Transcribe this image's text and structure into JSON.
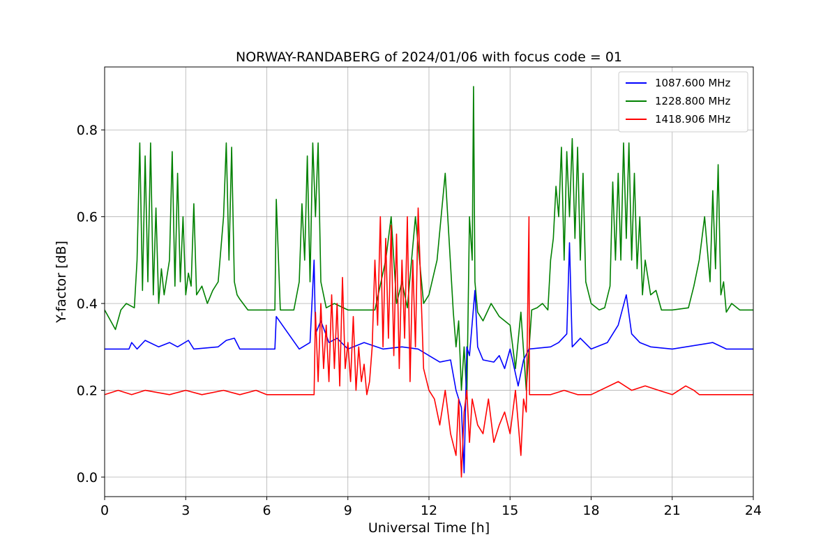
{
  "chart_data": {
    "type": "line",
    "title": "NORWAY-RANDABERG of 2024/01/06 with focus code = 01",
    "xlabel": "Universal Time [h]",
    "ylabel": "Y-factor [dB]",
    "xlim": [
      0,
      24
    ],
    "ylim": [
      -0.045,
      0.945
    ],
    "xticks": [
      0,
      3,
      6,
      9,
      12,
      15,
      18,
      21,
      24
    ],
    "yticks": [
      0.0,
      0.2,
      0.4,
      0.6,
      0.8
    ],
    "ytick_labels": [
      "0.0",
      "0.2",
      "0.4",
      "0.6",
      "0.8"
    ],
    "grid": true,
    "legend_position": "top-right",
    "series": [
      {
        "name": "1087.600 MHz",
        "color": "#0000ff",
        "baseline": 0.295,
        "x": [
          0,
          0.9,
          1.0,
          1.2,
          1.5,
          2.0,
          2.4,
          2.7,
          3.1,
          3.3,
          4.2,
          4.5,
          4.8,
          5.0,
          6.3,
          6.35,
          7.2,
          7.6,
          7.75,
          7.8,
          8.0,
          8.3,
          8.6,
          9.0,
          9.6,
          10.3,
          11.0,
          11.6,
          12.0,
          12.4,
          12.8,
          13.0,
          13.2,
          13.3,
          13.4,
          13.5,
          13.7,
          13.8,
          14.0,
          14.4,
          14.6,
          14.8,
          15.0,
          15.3,
          15.5,
          15.7,
          16.5,
          16.8,
          17.1,
          17.2,
          17.3,
          17.6,
          18.0,
          18.6,
          19.0,
          19.3,
          19.5,
          19.8,
          20.2,
          21.0,
          22.5,
          23.0,
          24.0
        ],
        "y": [
          0.295,
          0.295,
          0.31,
          0.295,
          0.315,
          0.3,
          0.31,
          0.3,
          0.315,
          0.295,
          0.3,
          0.315,
          0.32,
          0.295,
          0.295,
          0.37,
          0.295,
          0.31,
          0.5,
          0.33,
          0.36,
          0.31,
          0.32,
          0.295,
          0.31,
          0.295,
          0.3,
          0.295,
          0.28,
          0.265,
          0.27,
          0.2,
          0.16,
          0.01,
          0.3,
          0.28,
          0.43,
          0.3,
          0.27,
          0.265,
          0.28,
          0.25,
          0.295,
          0.21,
          0.27,
          0.295,
          0.3,
          0.31,
          0.33,
          0.54,
          0.3,
          0.32,
          0.295,
          0.31,
          0.35,
          0.42,
          0.33,
          0.31,
          0.3,
          0.295,
          0.31,
          0.295,
          0.295
        ]
      },
      {
        "name": "1228.800 MHz",
        "color": "#008000",
        "baseline": 0.385,
        "x": [
          0,
          0.4,
          0.6,
          0.8,
          1.1,
          1.2,
          1.3,
          1.4,
          1.5,
          1.6,
          1.7,
          1.8,
          1.9,
          2.0,
          2.1,
          2.2,
          2.3,
          2.4,
          2.5,
          2.6,
          2.7,
          2.8,
          2.9,
          3.0,
          3.1,
          3.2,
          3.3,
          3.4,
          3.6,
          3.8,
          4.0,
          4.2,
          4.4,
          4.5,
          4.6,
          4.7,
          4.8,
          4.9,
          5.0,
          5.3,
          6.0,
          6.3,
          6.35,
          6.5,
          7.0,
          7.2,
          7.3,
          7.4,
          7.5,
          7.6,
          7.7,
          7.8,
          7.9,
          8.0,
          8.2,
          8.5,
          9.0,
          10.0,
          10.4,
          10.6,
          10.8,
          11.0,
          11.2,
          11.5,
          11.8,
          12.0,
          12.3,
          12.6,
          12.9,
          13.0,
          13.1,
          13.2,
          13.3,
          13.4,
          13.5,
          13.6,
          13.65,
          13.7,
          13.8,
          14.0,
          14.3,
          14.6,
          15.0,
          15.2,
          15.4,
          15.6,
          15.8,
          16.0,
          16.2,
          16.4,
          16.5,
          16.6,
          16.7,
          16.8,
          16.9,
          17.0,
          17.1,
          17.2,
          17.3,
          17.4,
          17.5,
          17.6,
          17.7,
          17.8,
          18.0,
          18.3,
          18.5,
          18.7,
          18.8,
          18.9,
          19.0,
          19.1,
          19.2,
          19.3,
          19.4,
          19.5,
          19.6,
          19.7,
          19.8,
          19.9,
          20.0,
          20.2,
          20.4,
          20.6,
          21.0,
          21.6,
          21.8,
          22.0,
          22.2,
          22.4,
          22.5,
          22.6,
          22.7,
          22.8,
          22.9,
          23.0,
          23.2,
          23.5,
          24.0
        ],
        "y": [
          0.385,
          0.34,
          0.385,
          0.4,
          0.39,
          0.5,
          0.77,
          0.43,
          0.74,
          0.45,
          0.77,
          0.42,
          0.62,
          0.4,
          0.48,
          0.42,
          0.46,
          0.5,
          0.75,
          0.44,
          0.7,
          0.45,
          0.6,
          0.42,
          0.47,
          0.44,
          0.63,
          0.42,
          0.44,
          0.4,
          0.43,
          0.45,
          0.6,
          0.77,
          0.5,
          0.76,
          0.45,
          0.42,
          0.41,
          0.385,
          0.385,
          0.385,
          0.64,
          0.385,
          0.385,
          0.45,
          0.63,
          0.5,
          0.74,
          0.45,
          0.77,
          0.6,
          0.77,
          0.45,
          0.39,
          0.4,
          0.385,
          0.385,
          0.5,
          0.6,
          0.4,
          0.45,
          0.39,
          0.6,
          0.4,
          0.42,
          0.5,
          0.7,
          0.38,
          0.3,
          0.36,
          0.2,
          0.3,
          0.18,
          0.6,
          0.5,
          0.9,
          0.45,
          0.38,
          0.36,
          0.4,
          0.37,
          0.35,
          0.25,
          0.38,
          0.2,
          0.385,
          0.39,
          0.4,
          0.385,
          0.5,
          0.55,
          0.67,
          0.6,
          0.76,
          0.5,
          0.75,
          0.6,
          0.78,
          0.55,
          0.76,
          0.5,
          0.7,
          0.45,
          0.4,
          0.385,
          0.39,
          0.44,
          0.68,
          0.5,
          0.7,
          0.5,
          0.77,
          0.55,
          0.77,
          0.5,
          0.7,
          0.48,
          0.6,
          0.42,
          0.5,
          0.42,
          0.43,
          0.385,
          0.385,
          0.39,
          0.44,
          0.5,
          0.6,
          0.45,
          0.66,
          0.48,
          0.72,
          0.42,
          0.45,
          0.38,
          0.4,
          0.385,
          0.385
        ]
      },
      {
        "name": "1418.906 MHz",
        "color": "#ff0000",
        "baseline": 0.19,
        "x": [
          0,
          0.5,
          1.0,
          1.5,
          2.4,
          3.0,
          3.6,
          4.4,
          5.0,
          5.6,
          6.0,
          7.0,
          7.75,
          7.8,
          7.9,
          8.0,
          8.1,
          8.2,
          8.3,
          8.4,
          8.5,
          8.6,
          8.7,
          8.8,
          8.9,
          9.0,
          9.1,
          9.2,
          9.3,
          9.4,
          9.5,
          9.6,
          9.7,
          9.8,
          9.9,
          10.0,
          10.1,
          10.2,
          10.3,
          10.4,
          10.5,
          10.6,
          10.7,
          10.8,
          10.9,
          11.0,
          11.1,
          11.2,
          11.3,
          11.4,
          11.5,
          11.6,
          11.8,
          12.0,
          12.2,
          12.4,
          12.6,
          12.8,
          13.0,
          13.1,
          13.2,
          13.3,
          13.4,
          13.5,
          13.6,
          13.8,
          14.0,
          14.2,
          14.4,
          14.6,
          14.8,
          15.0,
          15.2,
          15.4,
          15.5,
          15.6,
          15.7,
          15.72,
          15.8,
          16.5,
          17.0,
          17.5,
          18.0,
          19.0,
          19.5,
          20.0,
          20.5,
          21.0,
          21.5,
          21.8,
          22.0,
          24.0
        ],
        "y": [
          0.19,
          0.2,
          0.19,
          0.2,
          0.19,
          0.2,
          0.19,
          0.2,
          0.19,
          0.2,
          0.19,
          0.19,
          0.19,
          0.38,
          0.22,
          0.4,
          0.25,
          0.35,
          0.22,
          0.42,
          0.25,
          0.4,
          0.21,
          0.46,
          0.25,
          0.31,
          0.22,
          0.37,
          0.2,
          0.3,
          0.22,
          0.26,
          0.19,
          0.22,
          0.3,
          0.5,
          0.35,
          0.6,
          0.3,
          0.55,
          0.32,
          0.58,
          0.28,
          0.56,
          0.25,
          0.5,
          0.32,
          0.6,
          0.22,
          0.5,
          0.3,
          0.62,
          0.25,
          0.2,
          0.18,
          0.12,
          0.2,
          0.1,
          0.05,
          0.18,
          0.0,
          0.15,
          0.2,
          0.08,
          0.18,
          0.12,
          0.1,
          0.18,
          0.08,
          0.12,
          0.15,
          0.1,
          0.2,
          0.05,
          0.18,
          0.15,
          0.6,
          0.19,
          0.19,
          0.19,
          0.2,
          0.19,
          0.19,
          0.22,
          0.2,
          0.21,
          0.2,
          0.19,
          0.21,
          0.2,
          0.19,
          0.19
        ]
      }
    ]
  }
}
